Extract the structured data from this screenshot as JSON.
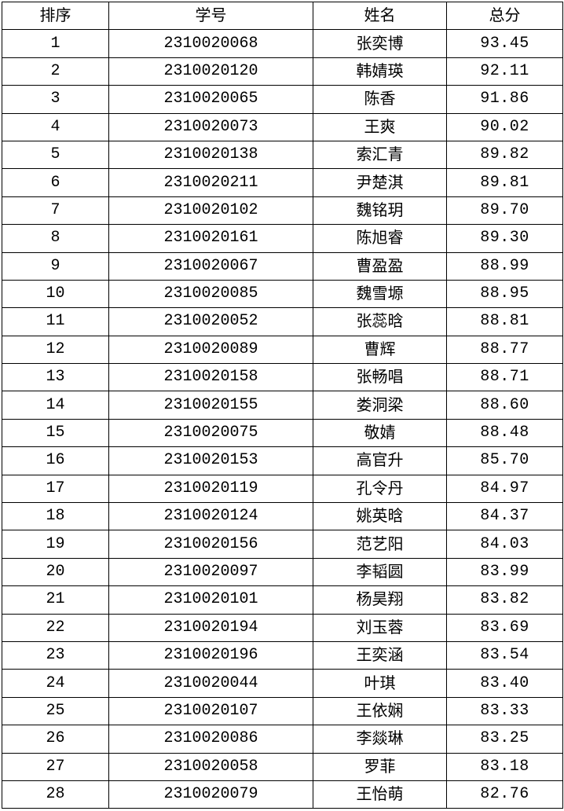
{
  "headers": [
    "排序",
    "学号",
    "姓名",
    "总分"
  ],
  "rows": [
    {
      "rank": "1",
      "id": "2310020068",
      "name": "张奕博",
      "score": "93.45"
    },
    {
      "rank": "2",
      "id": "2310020120",
      "name": "韩婧瑛",
      "score": "92.11"
    },
    {
      "rank": "3",
      "id": "2310020065",
      "name": "陈香",
      "score": "91.86"
    },
    {
      "rank": "4",
      "id": "2310020073",
      "name": "王爽",
      "score": "90.02"
    },
    {
      "rank": "5",
      "id": "2310020138",
      "name": "索汇青",
      "score": "89.82"
    },
    {
      "rank": "6",
      "id": "2310020211",
      "name": "尹楚淇",
      "score": "89.81"
    },
    {
      "rank": "7",
      "id": "2310020102",
      "name": "魏铭玥",
      "score": "89.70"
    },
    {
      "rank": "8",
      "id": "2310020161",
      "name": "陈旭睿",
      "score": "89.30"
    },
    {
      "rank": "9",
      "id": "2310020067",
      "name": "曹盈盈",
      "score": "88.99"
    },
    {
      "rank": "10",
      "id": "2310020085",
      "name": "魏雪塬",
      "score": "88.95"
    },
    {
      "rank": "11",
      "id": "2310020052",
      "name": "张蕊晗",
      "score": "88.81"
    },
    {
      "rank": "12",
      "id": "2310020089",
      "name": "曹辉",
      "score": "88.77"
    },
    {
      "rank": "13",
      "id": "2310020158",
      "name": "张畅唱",
      "score": "88.71"
    },
    {
      "rank": "14",
      "id": "2310020155",
      "name": "娄洞梁",
      "score": "88.60"
    },
    {
      "rank": "15",
      "id": "2310020075",
      "name": "敬婧",
      "score": "88.48"
    },
    {
      "rank": "16",
      "id": "2310020153",
      "name": "高官升",
      "score": "85.70"
    },
    {
      "rank": "17",
      "id": "2310020119",
      "name": "孔令丹",
      "score": "84.97"
    },
    {
      "rank": "18",
      "id": "2310020124",
      "name": "姚英晗",
      "score": "84.37"
    },
    {
      "rank": "19",
      "id": "2310020156",
      "name": "范艺阳",
      "score": "84.03"
    },
    {
      "rank": "20",
      "id": "2310020097",
      "name": "李韬圆",
      "score": "83.99"
    },
    {
      "rank": "21",
      "id": "2310020101",
      "name": "杨昊翔",
      "score": "83.82"
    },
    {
      "rank": "22",
      "id": "2310020194",
      "name": "刘玉蓉",
      "score": "83.69"
    },
    {
      "rank": "23",
      "id": "2310020196",
      "name": "王奕涵",
      "score": "83.54"
    },
    {
      "rank": "24",
      "id": "2310020044",
      "name": "叶琪",
      "score": "83.40"
    },
    {
      "rank": "25",
      "id": "2310020107",
      "name": "王依娴",
      "score": "83.33"
    },
    {
      "rank": "26",
      "id": "2310020086",
      "name": "李燚琳",
      "score": "83.25"
    },
    {
      "rank": "27",
      "id": "2310020058",
      "name": "罗菲",
      "score": "83.18"
    },
    {
      "rank": "28",
      "id": "2310020079",
      "name": "王怡萌",
      "score": "82.76"
    }
  ]
}
